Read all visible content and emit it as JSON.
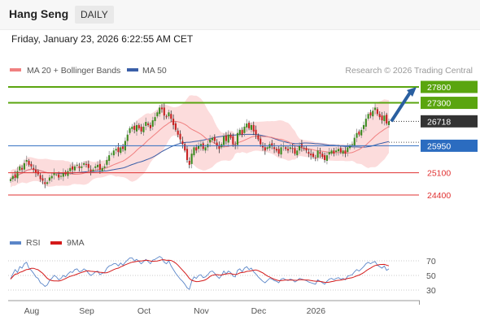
{
  "header": {
    "instrument": "Hang Seng",
    "timeframe": "DAILY"
  },
  "timestamp": "Friday, January 23, 2026 6:22:55 AM CET",
  "legend": {
    "ma20": "MA 20 + Bollinger Bands",
    "ma50": "MA 50",
    "credit": "Research © 2026 Trading Central"
  },
  "rsi_legend": {
    "rsi": "RSI",
    "ma": "9MA"
  },
  "colors": {
    "resistance": "#5aa50f",
    "support": "#e03030",
    "price": "#333333",
    "ma20": "#f08080",
    "ma50": "#3a5fa8",
    "bands": "#fbd0d0",
    "rsi": "#5b86c8",
    "rsi_ma": "#d41a1a",
    "arrow": "#2a5fa0",
    "last_close_line": "#2b6cc0"
  },
  "chart_data": {
    "type": "candlestick",
    "price_levels": [
      {
        "label": "27800",
        "value": 27800,
        "kind": "resistance"
      },
      {
        "label": "27300",
        "value": 27300,
        "kind": "resistance"
      },
      {
        "label": "26718",
        "value": 26718,
        "kind": "last"
      },
      {
        "label": "25950",
        "value": 25950,
        "kind": "pivot"
      },
      {
        "label": "25100",
        "value": 25100,
        "kind": "support"
      },
      {
        "label": "24400",
        "value": 24400,
        "kind": "support"
      }
    ],
    "x_tick_labels": [
      "Aug",
      "Sep",
      "Oct",
      "Nov",
      "Dec",
      "2026"
    ],
    "rsi_axis": {
      "ticks": [
        "70",
        "50",
        "30"
      ],
      "range": [
        20,
        80
      ]
    },
    "forecast_arrow": {
      "from": 26718,
      "to": 27800
    },
    "series": [
      {
        "name": "MA 20 + Bollinger Bands",
        "kind": "ma20"
      },
      {
        "name": "MA 50",
        "kind": "ma50"
      },
      {
        "name": "RSI",
        "kind": "rsi"
      },
      {
        "name": "9MA",
        "kind": "rsi_ma"
      }
    ],
    "closes": [
      24900,
      25000,
      24950,
      25150,
      25300,
      25200,
      25400,
      25500,
      25350,
      25300,
      25200,
      25100,
      25050,
      24900,
      24850,
      24750,
      24800,
      24950,
      25000,
      25100,
      25050,
      24950,
      25000,
      25100,
      25050,
      25150,
      25250,
      25200,
      25300,
      25350,
      25250,
      25300,
      25400,
      25350,
      25250,
      25150,
      25200,
      25300,
      25350,
      25200,
      25250,
      25300,
      25500,
      25650,
      25700,
      25800,
      25850,
      25750,
      25900,
      25850,
      26100,
      26300,
      26500,
      26550,
      26450,
      26600,
      26500,
      26400,
      26550,
      26700,
      26600,
      26500,
      26750,
      26850,
      27000,
      27150,
      27100,
      26900,
      26850,
      27000,
      26800,
      26600,
      26450,
      26300,
      26150,
      26000,
      25800,
      25500,
      25350,
      25700,
      25900,
      25800,
      25950,
      26000,
      25850,
      25900,
      26000,
      26150,
      26200,
      26100,
      25950,
      25850,
      26000,
      26250,
      26100,
      26300,
      26200,
      26000,
      25950,
      26350,
      26450,
      26300,
      26550,
      26650,
      26500,
      26600,
      26400,
      26300,
      26150,
      26000,
      25900,
      25800,
      25900,
      26000,
      25950,
      25850,
      25800,
      25700,
      25900,
      25950,
      25850,
      25800,
      25900,
      25850,
      25700,
      25800,
      25950,
      25900,
      25850,
      25800,
      25700,
      25650,
      25600,
      25550,
      25800,
      25700,
      25600,
      25500,
      25650,
      25750,
      25800,
      25700,
      25800,
      25850,
      25750,
      25800,
      25700,
      25900,
      25950,
      26000,
      26200,
      26350,
      26300,
      26450,
      26600,
      26800,
      26950,
      26900,
      27050,
      27150,
      26950,
      26850,
      26750,
      26900,
      26650,
      26718
    ],
    "rsi": [
      45,
      52,
      58,
      54,
      62,
      60,
      66,
      68,
      60,
      57,
      53,
      48,
      46,
      40,
      38,
      35,
      37,
      43,
      46,
      50,
      48,
      44,
      46,
      50,
      48,
      52,
      55,
      54,
      58,
      59,
      55,
      56,
      59,
      57,
      53,
      50,
      52,
      55,
      56,
      51,
      53,
      54,
      60,
      63,
      64,
      66,
      66,
      63,
      67,
      64,
      68,
      71,
      74,
      74,
      70,
      72,
      69,
      66,
      69,
      72,
      69,
      66,
      71,
      72,
      74,
      76,
      74,
      68,
      66,
      70,
      63,
      58,
      53,
      49,
      45,
      42,
      38,
      33,
      31,
      42,
      48,
      46,
      50,
      51,
      47,
      48,
      51,
      55,
      56,
      53,
      49,
      46,
      50,
      56,
      52,
      56,
      54,
      49,
      48,
      57,
      59,
      55,
      60,
      62,
      58,
      60,
      55,
      52,
      48,
      45,
      42,
      40,
      43,
      46,
      45,
      43,
      42,
      40,
      45,
      46,
      44,
      43,
      45,
      44,
      41,
      43,
      46,
      45,
      44,
      43,
      41,
      40,
      39,
      38,
      44,
      42,
      40,
      38,
      42,
      45,
      46,
      44,
      46,
      47,
      45,
      46,
      44,
      49,
      50,
      51,
      55,
      58,
      56,
      59,
      62,
      66,
      68,
      66,
      68,
      69,
      64,
      62,
      60,
      63,
      57,
      59
    ]
  }
}
